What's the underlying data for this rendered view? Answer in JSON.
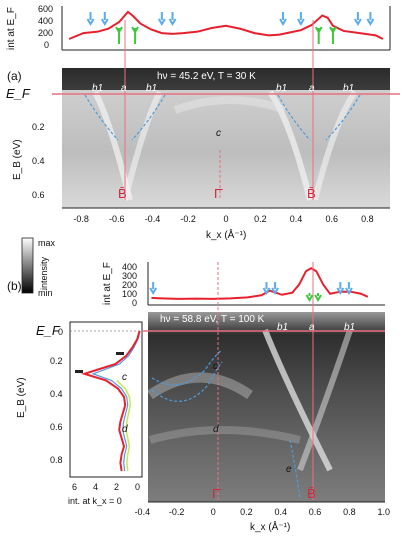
{
  "panel_a": {
    "label": "(a)",
    "params": "hν = 45.2 eV, T = 30 K",
    "mdc_ylabel": "int at E_F",
    "mdc_yticks": [
      "600",
      "400",
      "200",
      "0"
    ],
    "ylabel": "E_B (eV)",
    "ef_label": "E_F",
    "yticks": [
      "0.2",
      "0.4",
      "0.6"
    ],
    "xlabel": "k_x (Å⁻¹)",
    "xticks": [
      "-0.8",
      "-0.6",
      "-0.4",
      "-0.2",
      "0",
      "0.2",
      "0.4",
      "0.6",
      "0.8"
    ],
    "band_labels": [
      "b1",
      "a",
      "b1",
      "c",
      "b1",
      "a",
      "b1"
    ],
    "point_labels": [
      "B̄",
      "Γ̄",
      "B̄"
    ]
  },
  "panel_b": {
    "label": "(b)",
    "params": "hν = 58.8 eV, T = 100 K",
    "mdc_ylabel": "int at E_F",
    "mdc_yticks": [
      "400",
      "300",
      "200",
      "100",
      "0"
    ],
    "ylabel": "E_B (eV)",
    "ef_label": "E_F",
    "yticks": [
      "0",
      "0.2",
      "0.4",
      "0.6",
      "0.8"
    ],
    "xlabel": "k_x (Å⁻¹)",
    "xticks": [
      "-0.4",
      "-0.2",
      "0",
      "0.2",
      "0.4",
      "0.6",
      "0.8",
      "1.0"
    ],
    "edc_xticks": [
      "6",
      "4",
      "2",
      "0"
    ],
    "edc_xlabel": "int. at k_x = 0",
    "edc_band_labels": [
      "c",
      "d"
    ],
    "band_labels": [
      "b1",
      "a",
      "b1",
      "c",
      "d",
      "e"
    ],
    "point_labels": [
      "Γ̄",
      "B̄"
    ]
  },
  "colorbar": {
    "max": "max",
    "min": "min",
    "label": "intensity"
  },
  "colors": {
    "mdc": "#e8202e",
    "arrow_blue": "#5aaaf0",
    "arrow_green": "#3ec83e",
    "band_dash": "#4a9de0",
    "pink_line": "#e87080",
    "marker_red": "#d6243a"
  },
  "chart_data": [
    {
      "type": "line",
      "title": "",
      "xlabel": "k_x (Å⁻¹)",
      "ylabel": "int at E_F",
      "xlim": [
        -0.92,
        0.92
      ],
      "ylim": [
        0,
        600
      ],
      "series": [
        {
          "name": "",
          "x": [
            -0.88,
            -0.8,
            -0.72,
            -0.66,
            -0.6,
            -0.55,
            -0.52,
            -0.48,
            -0.42,
            -0.36,
            -0.3,
            -0.24,
            -0.16,
            -0.08,
            0,
            0.08,
            0.16,
            0.24,
            0.3,
            0.36,
            0.42,
            0.48,
            0.54,
            0.57,
            0.6,
            0.66,
            0.72,
            0.78,
            0.84,
            0.88
          ],
          "y": [
            150,
            230,
            250,
            290,
            380,
            520,
            460,
            360,
            280,
            230,
            220,
            230,
            250,
            300,
            330,
            290,
            230,
            200,
            210,
            240,
            270,
            340,
            470,
            440,
            330,
            260,
            240,
            220,
            200,
            150
          ]
        }
      ],
      "arrows_blue_kx": [
        -0.76,
        -0.68,
        -0.36,
        -0.3,
        0.32,
        0.42,
        0.74,
        0.81
      ],
      "arrows_green_kx": [
        -0.6,
        -0.51,
        0.52,
        0.6
      ]
    },
    {
      "type": "line",
      "title": "",
      "xlabel": "k_x (Å⁻¹)",
      "ylabel": "int at E_F",
      "xlim": [
        -0.38,
        1.0
      ],
      "ylim": [
        0,
        420
      ],
      "series": [
        {
          "name": "",
          "x": [
            -0.36,
            -0.3,
            -0.2,
            -0.1,
            0,
            0.1,
            0.2,
            0.28,
            0.33,
            0.4,
            0.46,
            0.5,
            0.54,
            0.57,
            0.6,
            0.64,
            0.68,
            0.74,
            0.8,
            0.86,
            0.9
          ],
          "y": [
            70,
            65,
            60,
            62,
            60,
            65,
            75,
            95,
            140,
            100,
            120,
            200,
            330,
            360,
            330,
            200,
            110,
            130,
            130,
            110,
            80
          ]
        }
      ],
      "arrows_blue_kx": [
        -0.35,
        0.31,
        0.36,
        0.74,
        0.79
      ],
      "arrows_green_kx": [
        0.56,
        0.61
      ]
    },
    {
      "type": "line",
      "title": "",
      "xlabel": "int. at k_x = 0",
      "ylabel": "E_B (eV)",
      "xlim": [
        6,
        0
      ],
      "ylim": [
        0.9,
        -0.05
      ],
      "series": [
        {
          "name": "",
          "y": [
            0.0,
            0.05,
            0.1,
            0.15,
            0.2,
            0.23,
            0.26,
            0.3,
            0.35,
            0.4,
            0.45,
            0.5,
            0.55,
            0.6,
            0.65,
            0.7,
            0.75,
            0.8,
            0.85
          ],
          "x": [
            0.2,
            0.4,
            0.8,
            1.3,
            2.2,
            3.5,
            4.8,
            3.0,
            2.0,
            1.5,
            1.4,
            1.6,
            1.8,
            1.9,
            1.7,
            1.5,
            1.7,
            1.8,
            1.7
          ]
        }
      ]
    }
  ]
}
